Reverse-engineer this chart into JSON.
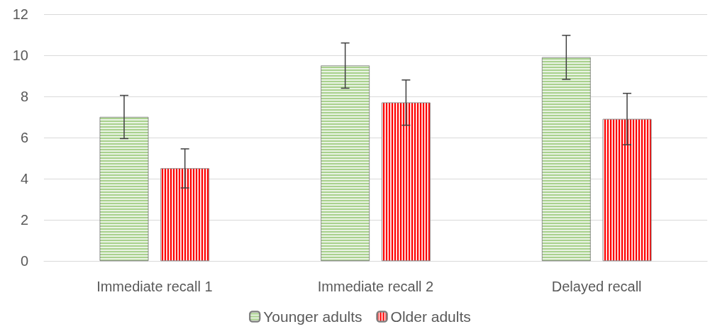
{
  "chart_data": {
    "type": "bar",
    "categories": [
      "Immediate recall 1",
      "Immediate recall 2",
      "Delayed recall"
    ],
    "series": [
      {
        "name": "Younger adults",
        "color": "#a9d18e",
        "values": [
          7.0,
          9.5,
          9.9
        ],
        "errors": [
          1.05,
          1.1,
          1.07
        ]
      },
      {
        "name": "Older adults",
        "color": "#ff0000",
        "values": [
          4.5,
          7.7,
          6.9
        ],
        "errors": [
          0.95,
          1.1,
          1.25
        ]
      }
    ],
    "ylim": [
      0,
      12
    ],
    "yticks": [
      0,
      2,
      4,
      6,
      8,
      10,
      12
    ],
    "grid": "y",
    "legend": "bottom"
  }
}
